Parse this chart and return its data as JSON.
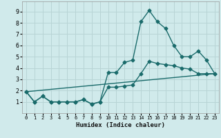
{
  "title": "",
  "xlabel": "Humidex (Indice chaleur)",
  "ylabel": "",
  "bg_color": "#d0eaeb",
  "grid_color": "#b8d4d5",
  "line_color": "#1a6b6b",
  "xlim": [
    -0.5,
    23.5
  ],
  "ylim": [
    0.0,
    9.9
  ],
  "yticks": [
    1,
    2,
    3,
    4,
    5,
    6,
    7,
    8,
    9
  ],
  "xticks": [
    0,
    1,
    2,
    3,
    4,
    5,
    6,
    7,
    8,
    9,
    10,
    11,
    12,
    13,
    14,
    15,
    16,
    17,
    18,
    19,
    20,
    21,
    22,
    23
  ],
  "line1_x": [
    0,
    1,
    2,
    3,
    4,
    5,
    6,
    7,
    8,
    9,
    10,
    11,
    12,
    13,
    14,
    15,
    16,
    17,
    18,
    19,
    20,
    21,
    22,
    23
  ],
  "line1_y": [
    1.9,
    1.0,
    1.5,
    1.0,
    1.0,
    1.0,
    1.0,
    1.2,
    0.8,
    1.0,
    3.6,
    3.6,
    4.5,
    4.7,
    8.1,
    9.1,
    8.1,
    7.5,
    6.0,
    5.0,
    5.0,
    5.5,
    4.7,
    3.5
  ],
  "line2_x": [
    0,
    1,
    2,
    3,
    4,
    5,
    6,
    7,
    8,
    9,
    10,
    11,
    12,
    13,
    14,
    15,
    16,
    17,
    18,
    19,
    20,
    21,
    22,
    23
  ],
  "line2_y": [
    1.9,
    1.0,
    1.5,
    1.0,
    1.0,
    1.0,
    1.0,
    1.2,
    0.8,
    1.0,
    2.3,
    2.3,
    2.4,
    2.5,
    3.5,
    4.6,
    4.4,
    4.3,
    4.2,
    4.0,
    3.9,
    3.5,
    3.5,
    3.5
  ],
  "line3_x": [
    0,
    23
  ],
  "line3_y": [
    1.9,
    3.5
  ]
}
